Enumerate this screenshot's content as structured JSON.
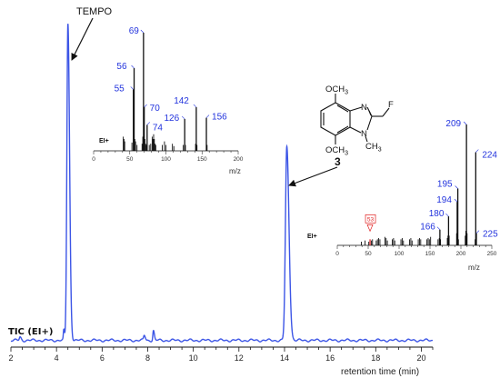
{
  "chart_data": [
    {
      "type": "line",
      "name": "",
      "ylabel_text": "TIC (EI+)",
      "xlabel": "retention time (min)",
      "xlim": [
        2,
        20.5
      ],
      "ylim": [
        0,
        1
      ],
      "grid": false,
      "x_ticks": [
        2,
        4,
        6,
        8,
        10,
        12,
        14,
        16,
        18,
        20
      ],
      "series_color": "#3c55e6",
      "peaks": [
        {
          "x": 4.5,
          "y": 0.985,
          "width": 0.045
        },
        {
          "x": 14.1,
          "y": 0.6,
          "width": 0.06
        },
        {
          "x": 4.32,
          "y": 0.03,
          "width": 0.02
        },
        {
          "x": 7.85,
          "y": 0.015,
          "width": 0.03
        },
        {
          "x": 8.25,
          "y": 0.03,
          "width": 0.025
        },
        {
          "x": 2.4,
          "y": 0.01,
          "width": 0.03
        }
      ],
      "annotations": [
        {
          "text": "TEMPO",
          "points_to_x": 4.5
        },
        {
          "text": "3",
          "points_to_x": 14.1
        }
      ]
    },
    {
      "type": "bar",
      "name": "mass spectrum of TEMPO peak",
      "ion_mode": "EI+",
      "xlabel": "m/z",
      "xlim": [
        0,
        200
      ],
      "x_ticks": [
        0,
        50,
        100,
        150,
        200
      ],
      "labeled_peaks": [
        {
          "mz": 55,
          "rel": 0.52,
          "label": "55"
        },
        {
          "mz": 56,
          "rel": 0.7,
          "label": "56"
        },
        {
          "mz": 69,
          "rel": 1.0,
          "label": "69"
        },
        {
          "mz": 70,
          "rel": 0.37,
          "label": "70"
        },
        {
          "mz": 74,
          "rel": 0.22,
          "label": "74"
        },
        {
          "mz": 126,
          "rel": 0.27,
          "label": "126"
        },
        {
          "mz": 142,
          "rel": 0.37,
          "label": "142"
        },
        {
          "mz": 156,
          "rel": 0.28,
          "label": "156"
        }
      ],
      "minor_peaks": [
        [
          41,
          0.12
        ],
        [
          42,
          0.1
        ],
        [
          43,
          0.08
        ],
        [
          53,
          0.07
        ],
        [
          57,
          0.1
        ],
        [
          58,
          0.08
        ],
        [
          60,
          0.05
        ],
        [
          67,
          0.06
        ],
        [
          68,
          0.12
        ],
        [
          71,
          0.1
        ],
        [
          72,
          0.06
        ],
        [
          73,
          0.05
        ],
        [
          77,
          0.05
        ],
        [
          79,
          0.06
        ],
        [
          81,
          0.12
        ],
        [
          82,
          0.1
        ],
        [
          83,
          0.14
        ],
        [
          84,
          0.1
        ],
        [
          85,
          0.06
        ],
        [
          86,
          0.05
        ],
        [
          95,
          0.05
        ],
        [
          98,
          0.08
        ],
        [
          100,
          0.05
        ],
        [
          109,
          0.06
        ],
        [
          111,
          0.04
        ],
        [
          124,
          0.05
        ],
        [
          127,
          0.05
        ],
        [
          141,
          0.06
        ],
        [
          143,
          0.05
        ],
        [
          157,
          0.05
        ]
      ],
      "label_color": "#2233dd"
    },
    {
      "type": "bar",
      "name": "mass spectrum of compound 3 peak",
      "ion_mode": "EI+",
      "xlabel": "m/z",
      "xlim": [
        0,
        250
      ],
      "x_ticks": [
        0,
        50,
        100,
        150,
        200,
        250
      ],
      "labeled_peaks": [
        {
          "mz": 166,
          "rel": 0.13,
          "label": "166"
        },
        {
          "mz": 180,
          "rel": 0.24,
          "label": "180"
        },
        {
          "mz": 194,
          "rel": 0.36,
          "label": "194"
        },
        {
          "mz": 195,
          "rel": 0.47,
          "label": "195"
        },
        {
          "mz": 209,
          "rel": 1.0,
          "label": "209"
        },
        {
          "mz": 224,
          "rel": 0.77,
          "label": "224"
        },
        {
          "mz": 225,
          "rel": 0.1,
          "label": "225"
        }
      ],
      "boxed_peak": {
        "mz": 53,
        "rel": 0.05,
        "label": "53",
        "color": "#e02020"
      },
      "minor_peaks": [
        [
          39,
          0.03
        ],
        [
          45,
          0.04
        ],
        [
          51,
          0.03
        ],
        [
          55,
          0.04
        ],
        [
          57,
          0.05
        ],
        [
          63,
          0.04
        ],
        [
          65,
          0.05
        ],
        [
          67,
          0.06
        ],
        [
          69,
          0.05
        ],
        [
          77,
          0.07
        ],
        [
          79,
          0.06
        ],
        [
          81,
          0.04
        ],
        [
          89,
          0.05
        ],
        [
          91,
          0.06
        ],
        [
          93,
          0.04
        ],
        [
          103,
          0.05
        ],
        [
          105,
          0.06
        ],
        [
          107,
          0.04
        ],
        [
          117,
          0.05
        ],
        [
          119,
          0.06
        ],
        [
          121,
          0.04
        ],
        [
          131,
          0.05
        ],
        [
          133,
          0.06
        ],
        [
          135,
          0.05
        ],
        [
          145,
          0.05
        ],
        [
          147,
          0.06
        ],
        [
          149,
          0.05
        ],
        [
          151,
          0.07
        ],
        [
          163,
          0.05
        ],
        [
          165,
          0.06
        ],
        [
          167,
          0.05
        ],
        [
          178,
          0.06
        ],
        [
          179,
          0.08
        ],
        [
          181,
          0.08
        ],
        [
          193,
          0.1
        ],
        [
          196,
          0.05
        ],
        [
          207,
          0.08
        ],
        [
          208,
          0.12
        ],
        [
          210,
          0.1
        ],
        [
          223,
          0.05
        ]
      ],
      "label_color": "#2233dd"
    }
  ],
  "structure": {
    "compound_number": "3",
    "top_substituent": "OCH",
    "top_substituent_sub": "3",
    "bottom_substituent": "OCH",
    "bottom_substituent_sub": "3",
    "n_label": "N",
    "n_methyl_label": "N",
    "methyl": "CH",
    "methyl_sub": "3",
    "fluoro": "F"
  }
}
